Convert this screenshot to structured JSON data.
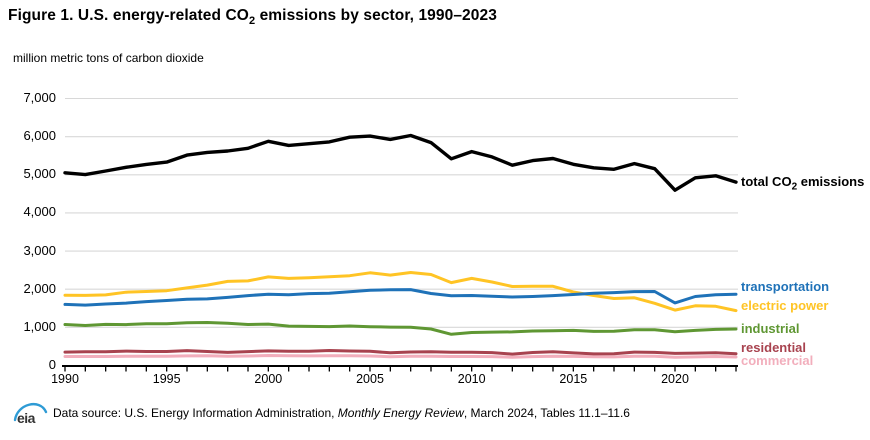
{
  "title": {
    "prefix": "Figure 1. U.S. energy-related CO",
    "sub": "2",
    "suffix": " emissions by sector, 1990–2023"
  },
  "units_label": "million metric tons of carbon dioxide",
  "footer": {
    "logo_text": "eia",
    "source_prefix": "Data source: U.S. Energy Information Administration, ",
    "source_italic": "Monthly Energy Review",
    "source_suffix": ", March 2024, Tables 11.1–11.6"
  },
  "colors": {
    "grid": "#D8D8D8",
    "axis": "#000000",
    "eia_logo_blue": "#2E9BD5"
  },
  "chart_data": {
    "type": "line",
    "title": "Figure 1. U.S. energy-related CO2 emissions by sector, 1990–2023",
    "ylabel": "million metric tons of carbon dioxide",
    "xlabel": "",
    "ylim": [
      0,
      7000
    ],
    "xlim": [
      1990,
      2023
    ],
    "grid": "horizontal",
    "legend_position": "right-of-line-ends",
    "y_ticks": [
      {
        "value": 0,
        "label": "0"
      },
      {
        "value": 1000,
        "label": "1,000"
      },
      {
        "value": 2000,
        "label": "2,000"
      },
      {
        "value": 3000,
        "label": "3,000"
      },
      {
        "value": 4000,
        "label": "4,000"
      },
      {
        "value": 5000,
        "label": "5,000"
      },
      {
        "value": 6000,
        "label": "6,000"
      },
      {
        "value": 7000,
        "label": "7,000"
      }
    ],
    "x_tick_labels": [
      "1990",
      "1995",
      "2000",
      "2005",
      "2010",
      "2015",
      "2020"
    ],
    "x": [
      1990,
      1991,
      1992,
      1993,
      1994,
      1995,
      1996,
      1997,
      1998,
      1999,
      2000,
      2001,
      2002,
      2003,
      2004,
      2005,
      2006,
      2007,
      2008,
      2009,
      2010,
      2011,
      2012,
      2013,
      2014,
      2015,
      2016,
      2017,
      2018,
      2019,
      2020,
      2021,
      2022,
      2023
    ],
    "series": [
      {
        "name": "total CO2 emissions",
        "label": {
          "pre": "total CO",
          "sub": "2",
          "post": " emissions"
        },
        "color": "#000000",
        "values": [
          5039,
          4992,
          5086,
          5184,
          5258,
          5320,
          5502,
          5575,
          5611,
          5680,
          5864,
          5758,
          5801,
          5848,
          5971,
          6001,
          5915,
          6018,
          5831,
          5406,
          5594,
          5455,
          5238,
          5360,
          5414,
          5263,
          5169,
          5132,
          5279,
          5146,
          4583,
          4907,
          4960,
          4795
        ]
      },
      {
        "name": "transportation",
        "label": "transportation",
        "color": "#1F72B8",
        "values": [
          1589,
          1571,
          1600,
          1623,
          1662,
          1692,
          1724,
          1733,
          1771,
          1820,
          1857,
          1841,
          1871,
          1880,
          1920,
          1958,
          1971,
          1978,
          1875,
          1816,
          1822,
          1800,
          1782,
          1797,
          1820,
          1848,
          1879,
          1897,
          1925,
          1926,
          1627,
          1795,
          1840,
          1857
        ]
      },
      {
        "name": "electric power",
        "label": "electric power",
        "color": "#FFC425",
        "values": [
          1831,
          1825,
          1839,
          1908,
          1928,
          1947,
          2021,
          2096,
          2191,
          2205,
          2310,
          2270,
          2286,
          2312,
          2342,
          2417,
          2358,
          2425,
          2373,
          2159,
          2271,
          2175,
          2057,
          2063,
          2062,
          1913,
          1821,
          1743,
          1763,
          1618,
          1439,
          1551,
          1539,
          1425
        ]
      },
      {
        "name": "industrial",
        "label": "industrial",
        "color": "#5F9733",
        "values": [
          1063,
          1036,
          1064,
          1059,
          1084,
          1082,
          1109,
          1114,
          1096,
          1063,
          1071,
          1021,
          1012,
          1007,
          1022,
          1003,
          994,
          992,
          944,
          806,
          852,
          863,
          868,
          892,
          900,
          906,
          880,
          885,
          925,
          926,
          870,
          908,
          934,
          944
        ]
      },
      {
        "name": "residential",
        "label": "residential",
        "color": "#A8434F",
        "values": [
          339,
          346,
          345,
          364,
          353,
          354,
          377,
          355,
          330,
          350,
          370,
          360,
          360,
          379,
          368,
          358,
          321,
          342,
          346,
          332,
          334,
          325,
          286,
          329,
          346,
          316,
          292,
          293,
          338,
          331,
          305,
          313,
          323,
          295
        ]
      },
      {
        "name": "commercial",
        "label": "commercial",
        "color": "#F2AEBC",
        "values": [
          224,
          224,
          223,
          227,
          228,
          232,
          239,
          242,
          232,
          236,
          249,
          240,
          238,
          243,
          240,
          235,
          218,
          229,
          232,
          224,
          224,
          221,
          202,
          221,
          232,
          225,
          215,
          212,
          232,
          229,
          203,
          213,
          223,
          211
        ]
      }
    ]
  }
}
